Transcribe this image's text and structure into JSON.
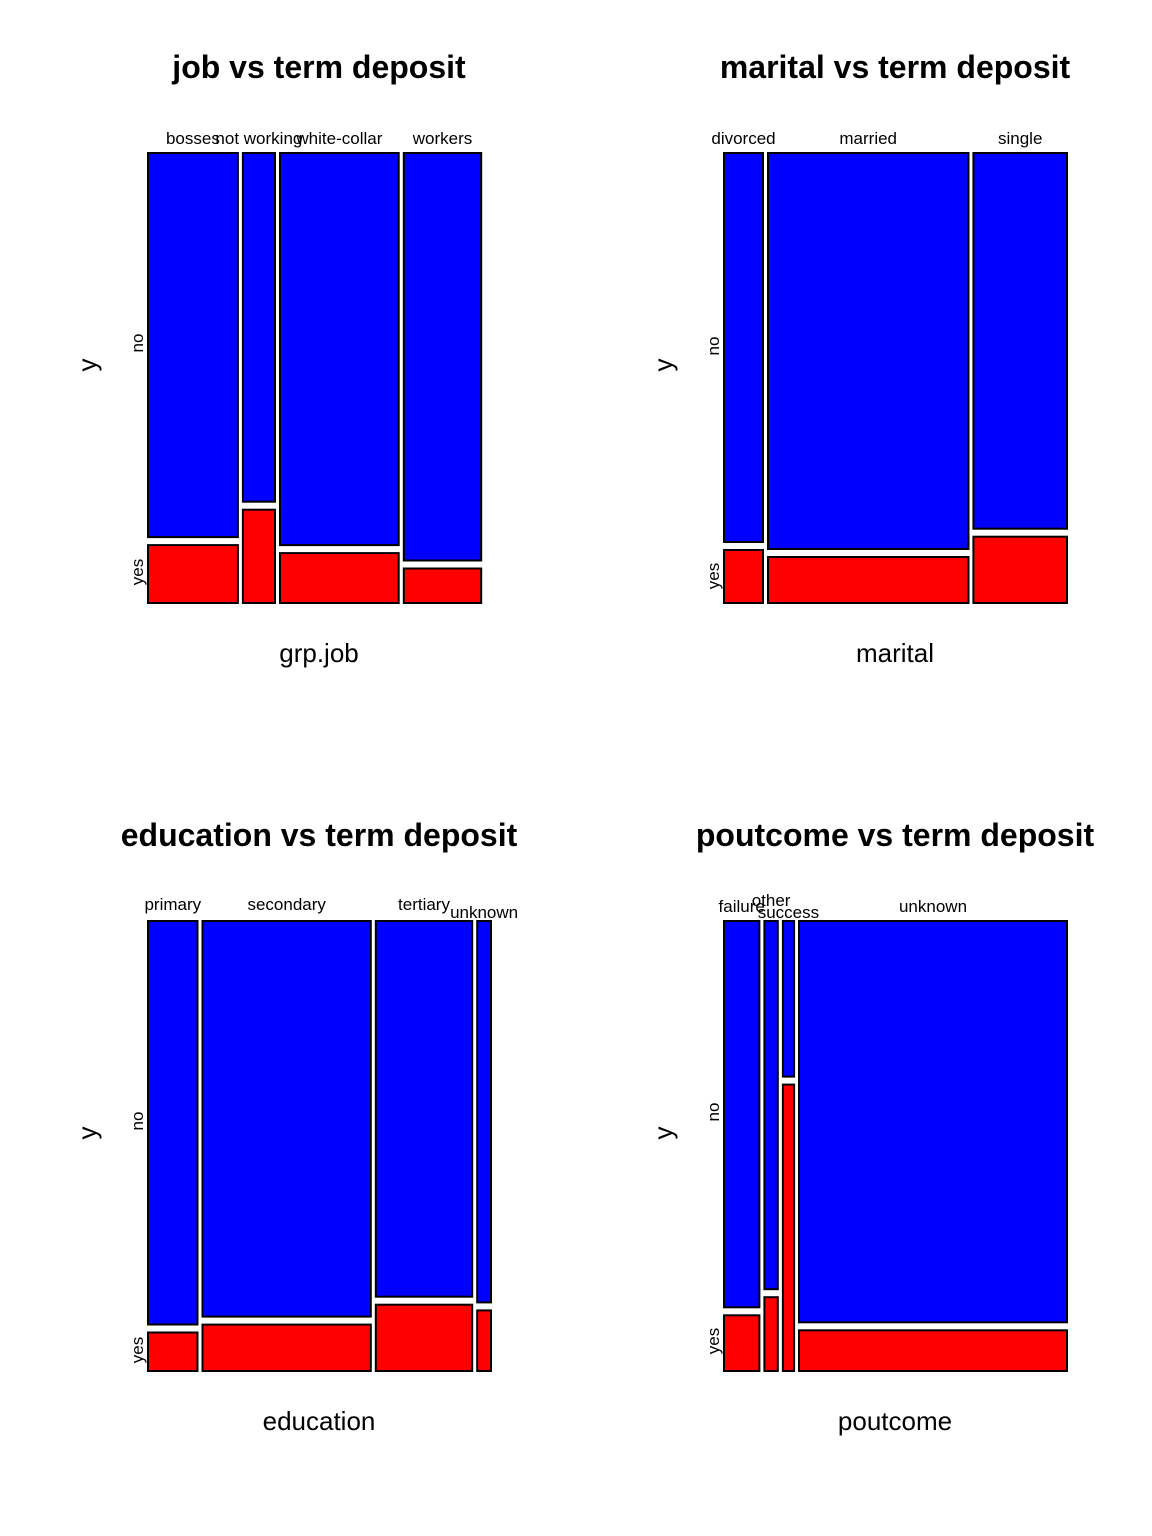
{
  "chart_data": [
    {
      "type": "mosaic",
      "title": "job vs term deposit",
      "xlabel": "grp.job",
      "ylabel": "y",
      "levels": [
        "no",
        "yes"
      ],
      "colors": {
        "no": "#0000FF",
        "yes": "#FF0000"
      },
      "categories": [
        "bosses",
        "not working",
        "white-collar",
        "workers"
      ],
      "proportions": [
        0.274,
        0.098,
        0.362,
        0.236
      ],
      "yes_share": [
        0.131,
        0.211,
        0.113,
        0.078
      ]
    },
    {
      "type": "mosaic",
      "title": "marital vs term deposit",
      "xlabel": "marital",
      "ylabel": "y",
      "levels": [
        "no",
        "yes"
      ],
      "colors": {
        "no": "#0000FF",
        "yes": "#FF0000"
      },
      "categories": [
        "divorced",
        "married",
        "single"
      ],
      "proportions": [
        0.117,
        0.602,
        0.281
      ],
      "yes_share": [
        0.12,
        0.104,
        0.15
      ]
    },
    {
      "type": "mosaic",
      "title": "education vs term deposit",
      "xlabel": "education",
      "ylabel": "y",
      "levels": [
        "no",
        "yes"
      ],
      "colors": {
        "no": "#0000FF",
        "yes": "#FF0000"
      },
      "categories": [
        "primary",
        "secondary",
        "tertiary",
        "unknown"
      ],
      "proportions": [
        0.151,
        0.513,
        0.294,
        0.042
      ],
      "yes_share": [
        0.087,
        0.105,
        0.15,
        0.137
      ]
    },
    {
      "type": "mosaic",
      "title": "poutcome vs term deposit",
      "xlabel": "poutcome",
      "ylabel": "y",
      "levels": [
        "no",
        "yes"
      ],
      "colors": {
        "no": "#0000FF",
        "yes": "#FF0000"
      },
      "categories": [
        "failure",
        "other",
        "success",
        "unknown"
      ],
      "proportions": [
        0.108,
        0.041,
        0.034,
        0.817
      ],
      "yes_share": [
        0.126,
        0.167,
        0.648,
        0.092
      ]
    }
  ]
}
